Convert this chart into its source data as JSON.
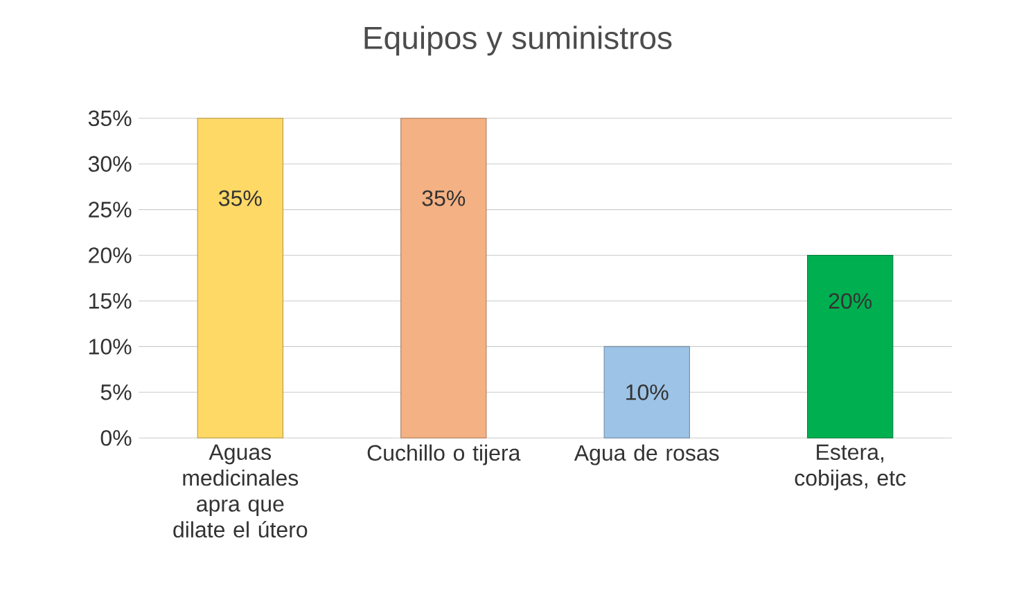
{
  "chart_data": {
    "type": "bar",
    "title": "Equipos y suministros",
    "categories": [
      "Aguas medicinales apra que dilate el útero",
      "Cuchillo o tijera",
      "Agua de rosas",
      "Estera, cobijas, etc"
    ],
    "values": [
      35,
      35,
      10,
      20
    ],
    "colors": [
      "#ffd966",
      "#f4b183",
      "#9dc3e6",
      "#00b050"
    ],
    "value_labels": [
      "35%",
      "35%",
      "10%",
      "20%"
    ],
    "ylim": [
      0,
      35
    ],
    "yticks": [
      {
        "value": 0,
        "label": "0%"
      },
      {
        "value": 5,
        "label": "5%"
      },
      {
        "value": 10,
        "label": "10%"
      },
      {
        "value": 15,
        "label": "15%"
      },
      {
        "value": 20,
        "label": "20%"
      },
      {
        "value": 25,
        "label": "25%"
      },
      {
        "value": 30,
        "label": "30%"
      },
      {
        "value": 35,
        "label": "35%"
      }
    ],
    "grid": "y"
  }
}
